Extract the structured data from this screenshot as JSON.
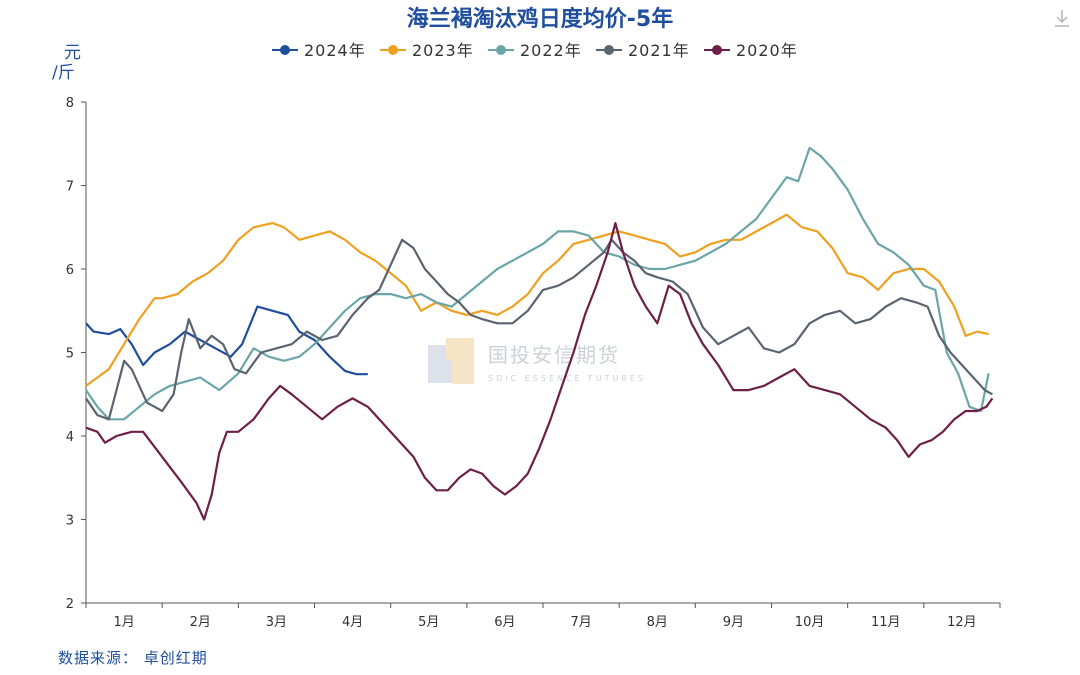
{
  "chart_data": {
    "type": "line",
    "title": "海兰褐淘汰鸡日度均价-5年",
    "ylabel": "元/斤",
    "ylim": [
      2,
      8
    ],
    "yticks": [
      "2",
      "3",
      "4",
      "5",
      "6",
      "7",
      "8"
    ],
    "months": [
      "1月",
      "2月",
      "3月",
      "4月",
      "5月",
      "6月",
      "7月",
      "8月",
      "9月",
      "10月",
      "11月",
      "12月"
    ],
    "grid": false,
    "legend_position": "top",
    "source": "数据来源： 卓创红期",
    "watermark": "国投安信期货",
    "watermark_sub": "SDIC ESSENCE FUTURES",
    "series": [
      {
        "name": "2024年",
        "color": "#1f4e9e",
        "points": [
          [
            0.0,
            5.35
          ],
          [
            0.1,
            5.25
          ],
          [
            0.3,
            5.22
          ],
          [
            0.45,
            5.28
          ],
          [
            0.6,
            5.1
          ],
          [
            0.75,
            4.85
          ],
          [
            0.9,
            5.0
          ],
          [
            1.1,
            5.1
          ],
          [
            1.3,
            5.25
          ],
          [
            1.6,
            5.1
          ],
          [
            1.9,
            4.95
          ],
          [
            2.05,
            5.1
          ],
          [
            2.25,
            5.55
          ],
          [
            2.45,
            5.5
          ],
          [
            2.65,
            5.45
          ],
          [
            2.8,
            5.25
          ],
          [
            3.0,
            5.15
          ],
          [
            3.2,
            4.95
          ],
          [
            3.4,
            4.78
          ],
          [
            3.55,
            4.74
          ],
          [
            3.7,
            4.74
          ]
        ]
      },
      {
        "name": "2023年",
        "color": "#f0a020",
        "points": [
          [
            0.0,
            4.6
          ],
          [
            0.15,
            4.7
          ],
          [
            0.3,
            4.8
          ],
          [
            0.5,
            5.1
          ],
          [
            0.7,
            5.4
          ],
          [
            0.9,
            5.65
          ],
          [
            1.0,
            5.65
          ],
          [
            1.2,
            5.7
          ],
          [
            1.4,
            5.85
          ],
          [
            1.6,
            5.95
          ],
          [
            1.8,
            6.1
          ],
          [
            2.0,
            6.35
          ],
          [
            2.2,
            6.5
          ],
          [
            2.45,
            6.55
          ],
          [
            2.6,
            6.5
          ],
          [
            2.8,
            6.35
          ],
          [
            3.0,
            6.4
          ],
          [
            3.2,
            6.45
          ],
          [
            3.4,
            6.35
          ],
          [
            3.6,
            6.2
          ],
          [
            3.8,
            6.1
          ],
          [
            4.0,
            5.95
          ],
          [
            4.2,
            5.8
          ],
          [
            4.4,
            5.5
          ],
          [
            4.6,
            5.6
          ],
          [
            4.8,
            5.5
          ],
          [
            5.0,
            5.45
          ],
          [
            5.2,
            5.5
          ],
          [
            5.4,
            5.45
          ],
          [
            5.6,
            5.55
          ],
          [
            5.8,
            5.7
          ],
          [
            6.0,
            5.95
          ],
          [
            6.2,
            6.1
          ],
          [
            6.4,
            6.3
          ],
          [
            6.6,
            6.35
          ],
          [
            6.8,
            6.4
          ],
          [
            7.0,
            6.45
          ],
          [
            7.2,
            6.4
          ],
          [
            7.4,
            6.35
          ],
          [
            7.6,
            6.3
          ],
          [
            7.8,
            6.15
          ],
          [
            8.0,
            6.2
          ],
          [
            8.2,
            6.3
          ],
          [
            8.4,
            6.35
          ],
          [
            8.6,
            6.35
          ],
          [
            8.8,
            6.45
          ],
          [
            9.0,
            6.55
          ],
          [
            9.2,
            6.65
          ],
          [
            9.4,
            6.5
          ],
          [
            9.6,
            6.45
          ],
          [
            9.8,
            6.25
          ],
          [
            10.0,
            5.95
          ],
          [
            10.2,
            5.9
          ],
          [
            10.4,
            5.75
          ],
          [
            10.6,
            5.95
          ],
          [
            10.8,
            6.0
          ],
          [
            11.0,
            6.0
          ],
          [
            11.2,
            5.85
          ],
          [
            11.4,
            5.55
          ],
          [
            11.55,
            5.2
          ],
          [
            11.7,
            5.25
          ],
          [
            11.85,
            5.22
          ]
        ]
      },
      {
        "name": "2022年",
        "color": "#6aa5a8",
        "points": [
          [
            0.0,
            4.55
          ],
          [
            0.15,
            4.35
          ],
          [
            0.3,
            4.2
          ],
          [
            0.5,
            4.2
          ],
          [
            0.7,
            4.35
          ],
          [
            0.9,
            4.5
          ],
          [
            1.1,
            4.6
          ],
          [
            1.3,
            4.65
          ],
          [
            1.5,
            4.7
          ],
          [
            1.75,
            4.55
          ],
          [
            2.0,
            4.75
          ],
          [
            2.2,
            5.05
          ],
          [
            2.4,
            4.95
          ],
          [
            2.6,
            4.9
          ],
          [
            2.8,
            4.95
          ],
          [
            3.0,
            5.1
          ],
          [
            3.2,
            5.3
          ],
          [
            3.4,
            5.5
          ],
          [
            3.6,
            5.65
          ],
          [
            3.8,
            5.7
          ],
          [
            4.0,
            5.7
          ],
          [
            4.2,
            5.65
          ],
          [
            4.4,
            5.7
          ],
          [
            4.6,
            5.6
          ],
          [
            4.8,
            5.55
          ],
          [
            5.0,
            5.7
          ],
          [
            5.2,
            5.85
          ],
          [
            5.4,
            6.0
          ],
          [
            5.6,
            6.1
          ],
          [
            5.8,
            6.2
          ],
          [
            6.0,
            6.3
          ],
          [
            6.2,
            6.45
          ],
          [
            6.4,
            6.45
          ],
          [
            6.6,
            6.4
          ],
          [
            6.8,
            6.2
          ],
          [
            7.0,
            6.15
          ],
          [
            7.2,
            6.05
          ],
          [
            7.4,
            6.0
          ],
          [
            7.6,
            6.0
          ],
          [
            7.8,
            6.05
          ],
          [
            8.0,
            6.1
          ],
          [
            8.2,
            6.2
          ],
          [
            8.4,
            6.3
          ],
          [
            8.6,
            6.45
          ],
          [
            8.8,
            6.6
          ],
          [
            9.0,
            6.85
          ],
          [
            9.2,
            7.1
          ],
          [
            9.35,
            7.05
          ],
          [
            9.5,
            7.45
          ],
          [
            9.65,
            7.35
          ],
          [
            9.8,
            7.2
          ],
          [
            10.0,
            6.95
          ],
          [
            10.2,
            6.6
          ],
          [
            10.4,
            6.3
          ],
          [
            10.6,
            6.2
          ],
          [
            10.8,
            6.05
          ],
          [
            11.0,
            5.8
          ],
          [
            11.15,
            5.75
          ],
          [
            11.3,
            5.0
          ],
          [
            11.45,
            4.75
          ],
          [
            11.6,
            4.35
          ],
          [
            11.75,
            4.3
          ],
          [
            11.85,
            4.75
          ]
        ]
      },
      {
        "name": "2021年",
        "color": "#5a6470",
        "points": [
          [
            0.0,
            4.45
          ],
          [
            0.15,
            4.25
          ],
          [
            0.3,
            4.2
          ],
          [
            0.4,
            4.55
          ],
          [
            0.5,
            4.9
          ],
          [
            0.6,
            4.8
          ],
          [
            0.7,
            4.6
          ],
          [
            0.8,
            4.4
          ],
          [
            0.9,
            4.35
          ],
          [
            1.0,
            4.3
          ],
          [
            1.15,
            4.5
          ],
          [
            1.25,
            5.0
          ],
          [
            1.35,
            5.4
          ],
          [
            1.5,
            5.05
          ],
          [
            1.65,
            5.2
          ],
          [
            1.8,
            5.1
          ],
          [
            1.95,
            4.8
          ],
          [
            2.1,
            4.75
          ],
          [
            2.3,
            5.0
          ],
          [
            2.5,
            5.05
          ],
          [
            2.7,
            5.1
          ],
          [
            2.9,
            5.25
          ],
          [
            3.1,
            5.15
          ],
          [
            3.3,
            5.2
          ],
          [
            3.5,
            5.45
          ],
          [
            3.7,
            5.65
          ],
          [
            3.85,
            5.75
          ],
          [
            4.0,
            6.05
          ],
          [
            4.15,
            6.35
          ],
          [
            4.3,
            6.25
          ],
          [
            4.45,
            6.0
          ],
          [
            4.6,
            5.85
          ],
          [
            4.75,
            5.7
          ],
          [
            4.9,
            5.6
          ],
          [
            5.05,
            5.45
          ],
          [
            5.2,
            5.4
          ],
          [
            5.4,
            5.35
          ],
          [
            5.6,
            5.35
          ],
          [
            5.8,
            5.5
          ],
          [
            6.0,
            5.75
          ],
          [
            6.2,
            5.8
          ],
          [
            6.4,
            5.9
          ],
          [
            6.6,
            6.05
          ],
          [
            6.8,
            6.2
          ],
          [
            6.9,
            6.35
          ],
          [
            7.05,
            6.2
          ],
          [
            7.2,
            6.1
          ],
          [
            7.35,
            5.95
          ],
          [
            7.5,
            5.9
          ],
          [
            7.7,
            5.85
          ],
          [
            7.9,
            5.7
          ],
          [
            8.1,
            5.3
          ],
          [
            8.3,
            5.1
          ],
          [
            8.5,
            5.2
          ],
          [
            8.7,
            5.3
          ],
          [
            8.9,
            5.05
          ],
          [
            9.1,
            5.0
          ],
          [
            9.3,
            5.1
          ],
          [
            9.5,
            5.35
          ],
          [
            9.7,
            5.45
          ],
          [
            9.9,
            5.5
          ],
          [
            10.1,
            5.35
          ],
          [
            10.3,
            5.4
          ],
          [
            10.5,
            5.55
          ],
          [
            10.7,
            5.65
          ],
          [
            10.9,
            5.6
          ],
          [
            11.05,
            5.55
          ],
          [
            11.2,
            5.2
          ],
          [
            11.35,
            5.0
          ],
          [
            11.5,
            4.85
          ],
          [
            11.65,
            4.7
          ],
          [
            11.8,
            4.55
          ],
          [
            11.9,
            4.5
          ]
        ]
      },
      {
        "name": "2020年",
        "color": "#6e1f48",
        "points": [
          [
            0.0,
            4.1
          ],
          [
            0.15,
            4.05
          ],
          [
            0.25,
            3.92
          ],
          [
            0.4,
            4.0
          ],
          [
            0.6,
            4.05
          ],
          [
            0.75,
            4.05
          ],
          [
            1.0,
            3.75
          ],
          [
            1.25,
            3.45
          ],
          [
            1.45,
            3.2
          ],
          [
            1.55,
            3.0
          ],
          [
            1.65,
            3.3
          ],
          [
            1.75,
            3.8
          ],
          [
            1.85,
            4.05
          ],
          [
            2.0,
            4.05
          ],
          [
            2.2,
            4.2
          ],
          [
            2.4,
            4.45
          ],
          [
            2.55,
            4.6
          ],
          [
            2.7,
            4.5
          ],
          [
            2.9,
            4.35
          ],
          [
            3.1,
            4.2
          ],
          [
            3.3,
            4.35
          ],
          [
            3.5,
            4.45
          ],
          [
            3.7,
            4.35
          ],
          [
            3.9,
            4.15
          ],
          [
            4.1,
            3.95
          ],
          [
            4.3,
            3.75
          ],
          [
            4.45,
            3.5
          ],
          [
            4.6,
            3.35
          ],
          [
            4.75,
            3.35
          ],
          [
            4.9,
            3.5
          ],
          [
            5.05,
            3.6
          ],
          [
            5.2,
            3.55
          ],
          [
            5.35,
            3.4
          ],
          [
            5.5,
            3.3
          ],
          [
            5.65,
            3.4
          ],
          [
            5.8,
            3.55
          ],
          [
            5.95,
            3.85
          ],
          [
            6.1,
            4.2
          ],
          [
            6.25,
            4.6
          ],
          [
            6.4,
            5.0
          ],
          [
            6.55,
            5.45
          ],
          [
            6.7,
            5.8
          ],
          [
            6.85,
            6.2
          ],
          [
            6.95,
            6.55
          ],
          [
            7.05,
            6.2
          ],
          [
            7.2,
            5.8
          ],
          [
            7.35,
            5.55
          ],
          [
            7.5,
            5.35
          ],
          [
            7.65,
            5.8
          ],
          [
            7.8,
            5.7
          ],
          [
            7.95,
            5.35
          ],
          [
            8.1,
            5.1
          ],
          [
            8.3,
            4.85
          ],
          [
            8.5,
            4.55
          ],
          [
            8.7,
            4.55
          ],
          [
            8.9,
            4.6
          ],
          [
            9.1,
            4.7
          ],
          [
            9.3,
            4.8
          ],
          [
            9.5,
            4.6
          ],
          [
            9.7,
            4.55
          ],
          [
            9.9,
            4.5
          ],
          [
            10.1,
            4.35
          ],
          [
            10.3,
            4.2
          ],
          [
            10.5,
            4.1
          ],
          [
            10.65,
            3.95
          ],
          [
            10.8,
            3.75
          ],
          [
            10.95,
            3.9
          ],
          [
            11.1,
            3.95
          ],
          [
            11.25,
            4.05
          ],
          [
            11.4,
            4.2
          ],
          [
            11.55,
            4.3
          ],
          [
            11.7,
            4.3
          ],
          [
            11.82,
            4.35
          ],
          [
            11.9,
            4.45
          ]
        ]
      }
    ]
  }
}
